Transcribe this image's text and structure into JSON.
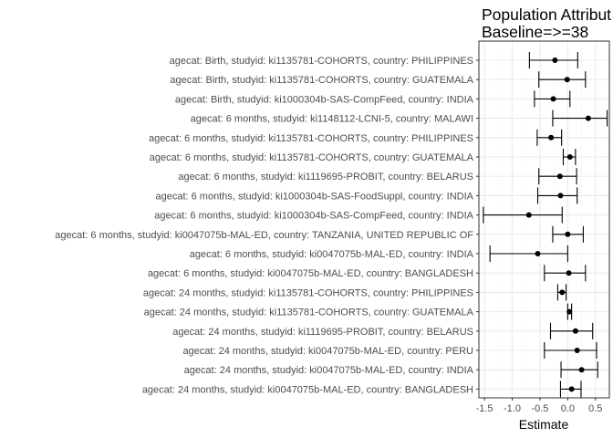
{
  "chart_data": {
    "type": "scatter",
    "title_lines": [
      "Population Attribut",
      "Baseline=>=38"
    ],
    "xlabel": "Estimate",
    "ylabel": "",
    "xlim": [
      -1.6,
      0.75
    ],
    "x_ticks": [
      -1.5,
      -1.0,
      -0.5,
      0.0,
      0.5
    ],
    "x_tick_labels": [
      "-1.5",
      "-1.0",
      "-0.5",
      "0.0",
      "0.5"
    ],
    "grid": true,
    "legend": "none",
    "colors": {
      "point": "#000000",
      "errorbar": "#000000",
      "grid_major": "#ebebeb",
      "grid_minor": "#f5f5f5",
      "panel_border": "#333333",
      "tick_text": "#4d4d4d"
    },
    "rows": [
      {
        "label": "agecat: Birth, studyid: ki1135781-COHORTS, country: PHILIPPINES",
        "estimate": -0.23,
        "lower": -0.69,
        "upper": 0.18
      },
      {
        "label": "agecat: Birth, studyid: ki1135781-COHORTS, country: GUATEMALA",
        "estimate": -0.01,
        "lower": -0.52,
        "upper": 0.32
      },
      {
        "label": "agecat: Birth, studyid: ki1000304b-SAS-CompFeed, country: INDIA",
        "estimate": -0.26,
        "lower": -0.6,
        "upper": 0.04
      },
      {
        "label": "agecat: 6 months, studyid: ki1148112-LCNI-5, country: MALAWI",
        "estimate": 0.37,
        "lower": -0.27,
        "upper": 0.71
      },
      {
        "label": "agecat: 6 months, studyid: ki1135781-COHORTS, country: PHILIPPINES",
        "estimate": -0.3,
        "lower": -0.55,
        "upper": -0.11
      },
      {
        "label": "agecat: 6 months, studyid: ki1135781-COHORTS, country: GUATEMALA",
        "estimate": 0.04,
        "lower": -0.08,
        "upper": 0.14
      },
      {
        "label": "agecat: 6 months, studyid: ki1119695-PROBIT, country: BELARUS",
        "estimate": -0.14,
        "lower": -0.52,
        "upper": 0.16
      },
      {
        "label": "agecat: 6 months, studyid: ki1000304b-SAS-FoodSuppl, country: INDIA",
        "estimate": -0.13,
        "lower": -0.54,
        "upper": 0.17
      },
      {
        "label": "agecat: 6 months, studyid: ki1000304b-SAS-CompFeed, country: INDIA",
        "estimate": -0.7,
        "lower": -1.52,
        "upper": -0.1
      },
      {
        "label": "agecat: 6 months, studyid: ki0047075b-MAL-ED, country: TANZANIA, UNITED REPUBLIC OF",
        "estimate": 0.0,
        "lower": -0.27,
        "upper": 0.28
      },
      {
        "label": "agecat: 6 months, studyid: ki0047075b-MAL-ED, country: INDIA",
        "estimate": -0.54,
        "lower": -1.4,
        "upper": 0.0
      },
      {
        "label": "agecat: 6 months, studyid: ki0047075b-MAL-ED, country: BANGLADESH",
        "estimate": 0.02,
        "lower": -0.42,
        "upper": 0.32
      },
      {
        "label": "agecat: 24 months, studyid: ki1135781-COHORTS, country: PHILIPPINES",
        "estimate": -0.1,
        "lower": -0.18,
        "upper": -0.03
      },
      {
        "label": "agecat: 24 months, studyid: ki1135781-COHORTS, country: GUATEMALA",
        "estimate": 0.03,
        "lower": 0.0,
        "upper": 0.07
      },
      {
        "label": "agecat: 24 months, studyid: ki1119695-PROBIT, country: BELARUS",
        "estimate": 0.14,
        "lower": -0.31,
        "upper": 0.45
      },
      {
        "label": "agecat: 24 months, studyid: ki0047075b-MAL-ED, country: PERU",
        "estimate": 0.17,
        "lower": -0.42,
        "upper": 0.52
      },
      {
        "label": "agecat: 24 months, studyid: ki0047075b-MAL-ED, country: INDIA",
        "estimate": 0.25,
        "lower": -0.12,
        "upper": 0.54
      },
      {
        "label": "agecat: 24 months, studyid: ki0047075b-MAL-ED, country: BANGLADESH",
        "estimate": 0.07,
        "lower": -0.13,
        "upper": 0.24
      }
    ]
  }
}
